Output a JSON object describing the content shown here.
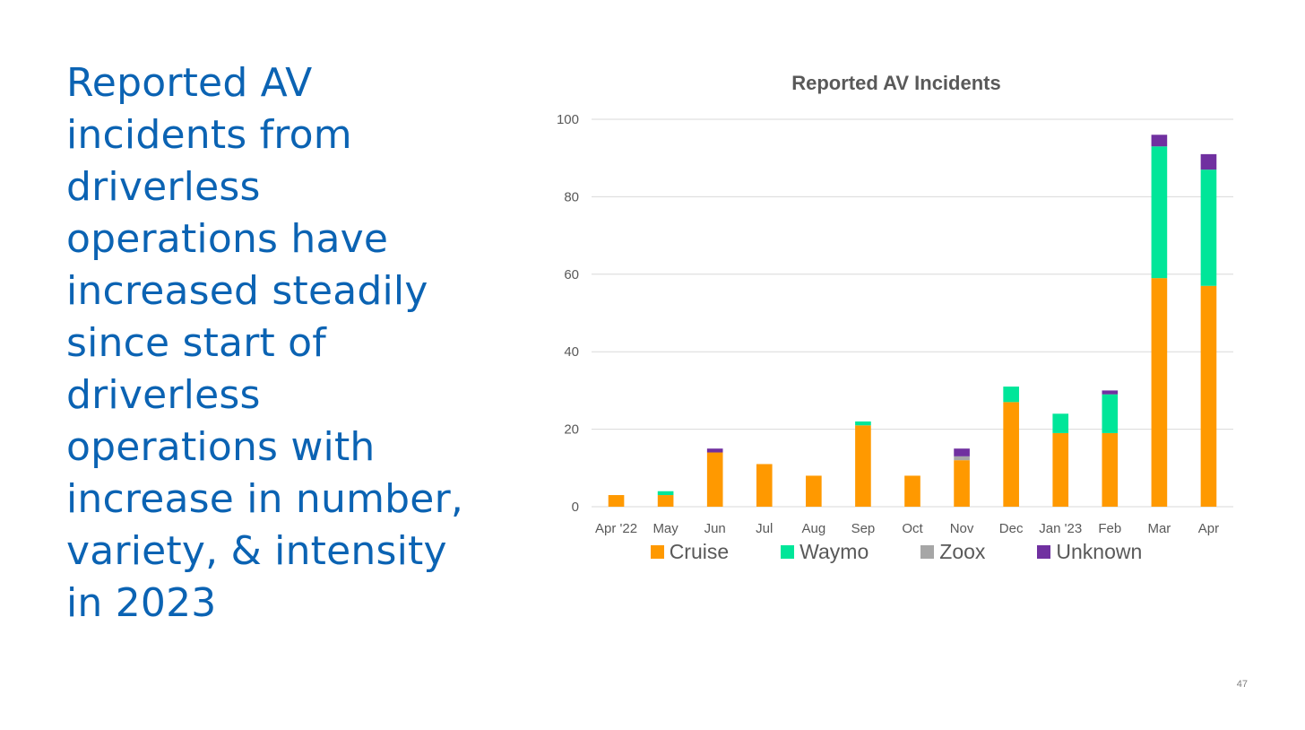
{
  "slide": {
    "heading_lines": [
      "Reported AV",
      "incidents from",
      "driverless",
      "operations have",
      "increased steadily",
      "since start of",
      "driverless",
      "operations with",
      "increase in number,",
      "variety, & intensity",
      "in 2023"
    ],
    "page_number": "47"
  },
  "chart_data": {
    "type": "bar",
    "stacked": true,
    "title": "Reported AV Incidents",
    "xlabel": "",
    "ylabel": "",
    "ylim": [
      0,
      100
    ],
    "yticks": [
      0,
      20,
      40,
      60,
      80,
      100
    ],
    "grid": true,
    "legend_position": "bottom",
    "categories": [
      "Apr '22",
      "May",
      "Jun",
      "Jul",
      "Aug",
      "Sep",
      "Oct",
      "Nov",
      "Dec",
      "Jan '23",
      "Feb",
      "Mar",
      "Apr"
    ],
    "series": [
      {
        "name": "Cruise",
        "color": "#ff9900",
        "values": [
          3,
          3,
          14,
          11,
          8,
          21,
          8,
          12,
          27,
          19,
          19,
          59,
          57
        ]
      },
      {
        "name": "Waymo",
        "color": "#00e699",
        "values": [
          0,
          1,
          0,
          0,
          0,
          1,
          0,
          0,
          4,
          5,
          10,
          34,
          30
        ]
      },
      {
        "name": "Zoox",
        "color": "#a6a6a6",
        "values": [
          0,
          0,
          0,
          0,
          0,
          0,
          0,
          1,
          0,
          0,
          0,
          0,
          0
        ]
      },
      {
        "name": "Unknown",
        "color": "#7030a0",
        "values": [
          0,
          0,
          1,
          0,
          0,
          0,
          0,
          2,
          0,
          0,
          1,
          3,
          4
        ]
      }
    ]
  }
}
